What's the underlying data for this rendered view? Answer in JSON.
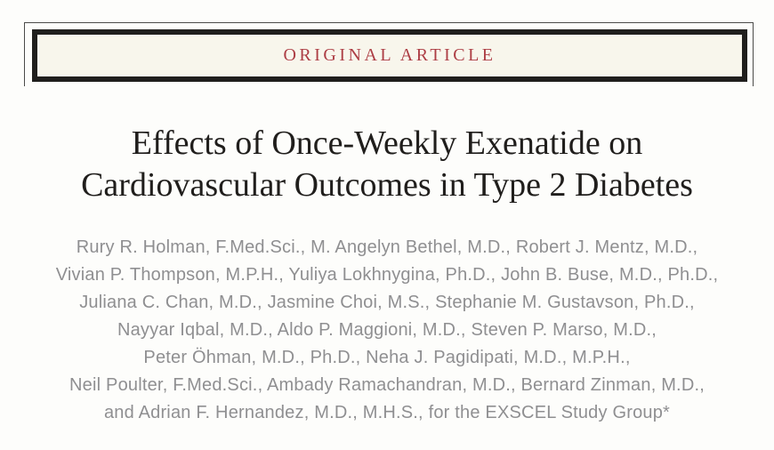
{
  "banner": {
    "label": "ORIGINAL ARTICLE"
  },
  "title": {
    "line1": "Effects of Once-Weekly Exenatide on",
    "line2": "Cardiovascular Outcomes in Type 2 Diabetes"
  },
  "authors": {
    "lines": [
      "Rury R. Holman, F.Med.Sci., M. Angelyn Bethel, M.D., Robert J. Mentz, M.D.,",
      "Vivian P. Thompson, M.P.H., Yuliya Lokhnygina, Ph.D., John B. Buse, M.D., Ph.D.,",
      "Juliana C. Chan, M.D., Jasmine Choi, M.S., Stephanie M. Gustavson, Ph.D.,",
      "Nayyar Iqbal, M.D., Aldo P. Maggioni, M.D., Steven P. Marso, M.D.,",
      "Peter Öhman, M.D., Ph.D., Neha J. Pagidipati, M.D., M.P.H.,",
      "Neil Poulter, F.Med.Sci., Ambady Ramachandran, M.D., Bernard Zinman, M.D.,",
      "and Adrian F. Hernandez, M.D., M.H.S., for the EXSCEL Study Group*"
    ]
  },
  "colors": {
    "accent_red": "#ad3e45",
    "banner_background": "#f8f6ec",
    "border_dark": "#201f1d",
    "title_text": "#201e1c",
    "author_text": "#8f8f91"
  }
}
